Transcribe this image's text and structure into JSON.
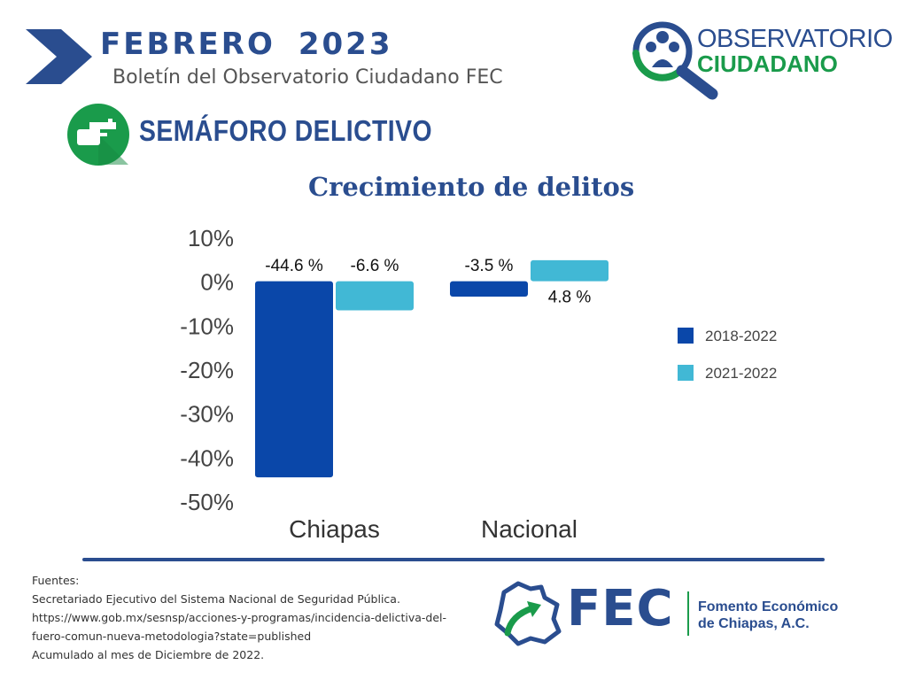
{
  "header": {
    "month": "FEBRERO",
    "year": "2023",
    "subtitle": "Boletín del Observatorio Ciudadano FEC"
  },
  "logo": {
    "line1": "OBSERVATORIO",
    "line2": "CIUDADANO"
  },
  "section": {
    "title": "SEMÁFORO DELICTIVO"
  },
  "chart_data": {
    "type": "bar",
    "title": "Crecimiento de delitos",
    "categories": [
      "Chiapas",
      "Nacional"
    ],
    "series": [
      {
        "name": "2018-2022",
        "values": [
          -44.6,
          -3.5
        ],
        "labels": [
          "-44.6 %",
          "-3.5 %"
        ],
        "color": "#0a47a9"
      },
      {
        "name": "2021-2022",
        "values": [
          -6.6,
          4.8
        ],
        "labels": [
          "-6.6 %",
          "4.8 %"
        ],
        "color": "#41b8d5"
      }
    ],
    "yticks": [
      "10%",
      "0%",
      "-10%",
      "-20%",
      "-30%",
      "-40%",
      "-50%"
    ],
    "ylim": [
      -50,
      10
    ],
    "grid": false,
    "legend": "right"
  },
  "sources": {
    "label": "Fuentes:",
    "lines": [
      "Secretariado Ejecutivo del Sistema Nacional de Seguridad Pública.",
      "https://www.gob.mx/sesnsp/acciones-y-programas/incidencia-delictiva-del-",
      "fuero-comun-nueva-metodologia?state=published",
      "Acumulado al mes de Diciembre de 2022."
    ]
  },
  "footer": {
    "acronym": "FEC",
    "name_line1": "Fomento Económico",
    "name_line2": "de Chiapas, A.C."
  },
  "colors": {
    "brand_blue": "#2a4d8f",
    "brand_green": "#1a9b4b"
  }
}
